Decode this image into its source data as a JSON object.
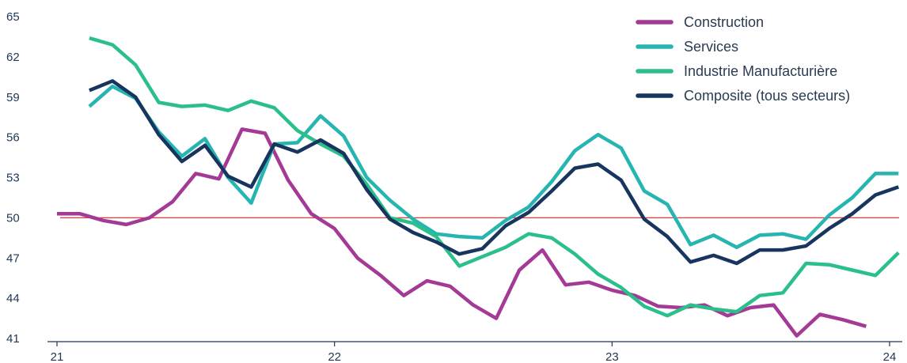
{
  "chart_data": {
    "type": "line",
    "title": "",
    "xlabel": "",
    "ylabel": "",
    "xlim": [
      21.0,
      24.0
    ],
    "ylim": [
      41,
      65
    ],
    "yticks": [
      41,
      44,
      47,
      50,
      53,
      56,
      59,
      62,
      65
    ],
    "xticks": [
      {
        "value": 21,
        "label": "21"
      },
      {
        "value": 22,
        "label": "22"
      },
      {
        "value": 23,
        "label": "23"
      },
      {
        "value": 24,
        "label": "24"
      }
    ],
    "grid": false,
    "legend": "top-right",
    "reference_line": {
      "y": 50,
      "color": "#e03c31"
    },
    "series": [
      {
        "name": "Construction",
        "color": "#a43a96",
        "start": 21.0,
        "step": 0.0833,
        "values": [
          50.3,
          50.3,
          49.8,
          49.5,
          50.0,
          51.2,
          53.3,
          52.9,
          56.6,
          56.3,
          52.8,
          50.3,
          49.2,
          47.0,
          45.7,
          44.2,
          45.3,
          44.9,
          43.5,
          42.5,
          46.1,
          47.6,
          45.0,
          45.2,
          44.6,
          44.2,
          43.4,
          43.3,
          43.5,
          42.7,
          43.3,
          43.5,
          41.2,
          42.8,
          42.4,
          41.9
        ]
      },
      {
        "name": "Services",
        "color": "#26b5b0",
        "start": 21.1167,
        "step": 0.0833,
        "values": [
          58.3,
          59.8,
          58.9,
          56.4,
          54.6,
          55.9,
          53.0,
          51.1,
          55.5,
          55.6,
          57.6,
          56.1,
          53.0,
          51.3,
          49.9,
          48.8,
          48.6,
          48.5,
          49.8,
          50.8,
          52.7,
          55.0,
          56.2,
          55.2,
          52.0,
          51.0,
          48.0,
          48.7,
          47.8,
          48.7,
          48.8,
          48.4,
          50.2,
          51.5,
          53.3,
          53.3
        ]
      },
      {
        "name": "Industrie Manufacturière",
        "color": "#2bbf8c",
        "start": 21.1167,
        "step": 0.0833,
        "values": [
          63.4,
          62.9,
          61.4,
          58.6,
          58.3,
          58.4,
          58.0,
          58.7,
          58.2,
          56.5,
          55.5,
          54.6,
          52.5,
          50.0,
          49.6,
          48.6,
          46.4,
          47.1,
          47.8,
          48.8,
          48.5,
          47.3,
          45.8,
          44.8,
          43.4,
          42.7,
          43.5,
          43.2,
          43.0,
          44.2,
          44.4,
          46.6,
          46.5,
          46.1,
          45.7,
          47.4
        ]
      },
      {
        "name": "Composite (tous secteurs)",
        "color": "#17355e",
        "start": 21.1167,
        "step": 0.0833,
        "values": [
          59.5,
          60.2,
          59.0,
          56.2,
          54.2,
          55.4,
          53.1,
          52.3,
          55.5,
          54.9,
          55.8,
          54.8,
          52.1,
          49.9,
          48.9,
          48.2,
          47.3,
          47.7,
          49.4,
          50.4,
          52.0,
          53.7,
          54.0,
          52.8,
          49.9,
          48.6,
          46.7,
          47.2,
          46.6,
          47.6,
          47.6,
          47.9,
          49.2,
          50.3,
          51.7,
          52.3
        ]
      }
    ]
  }
}
